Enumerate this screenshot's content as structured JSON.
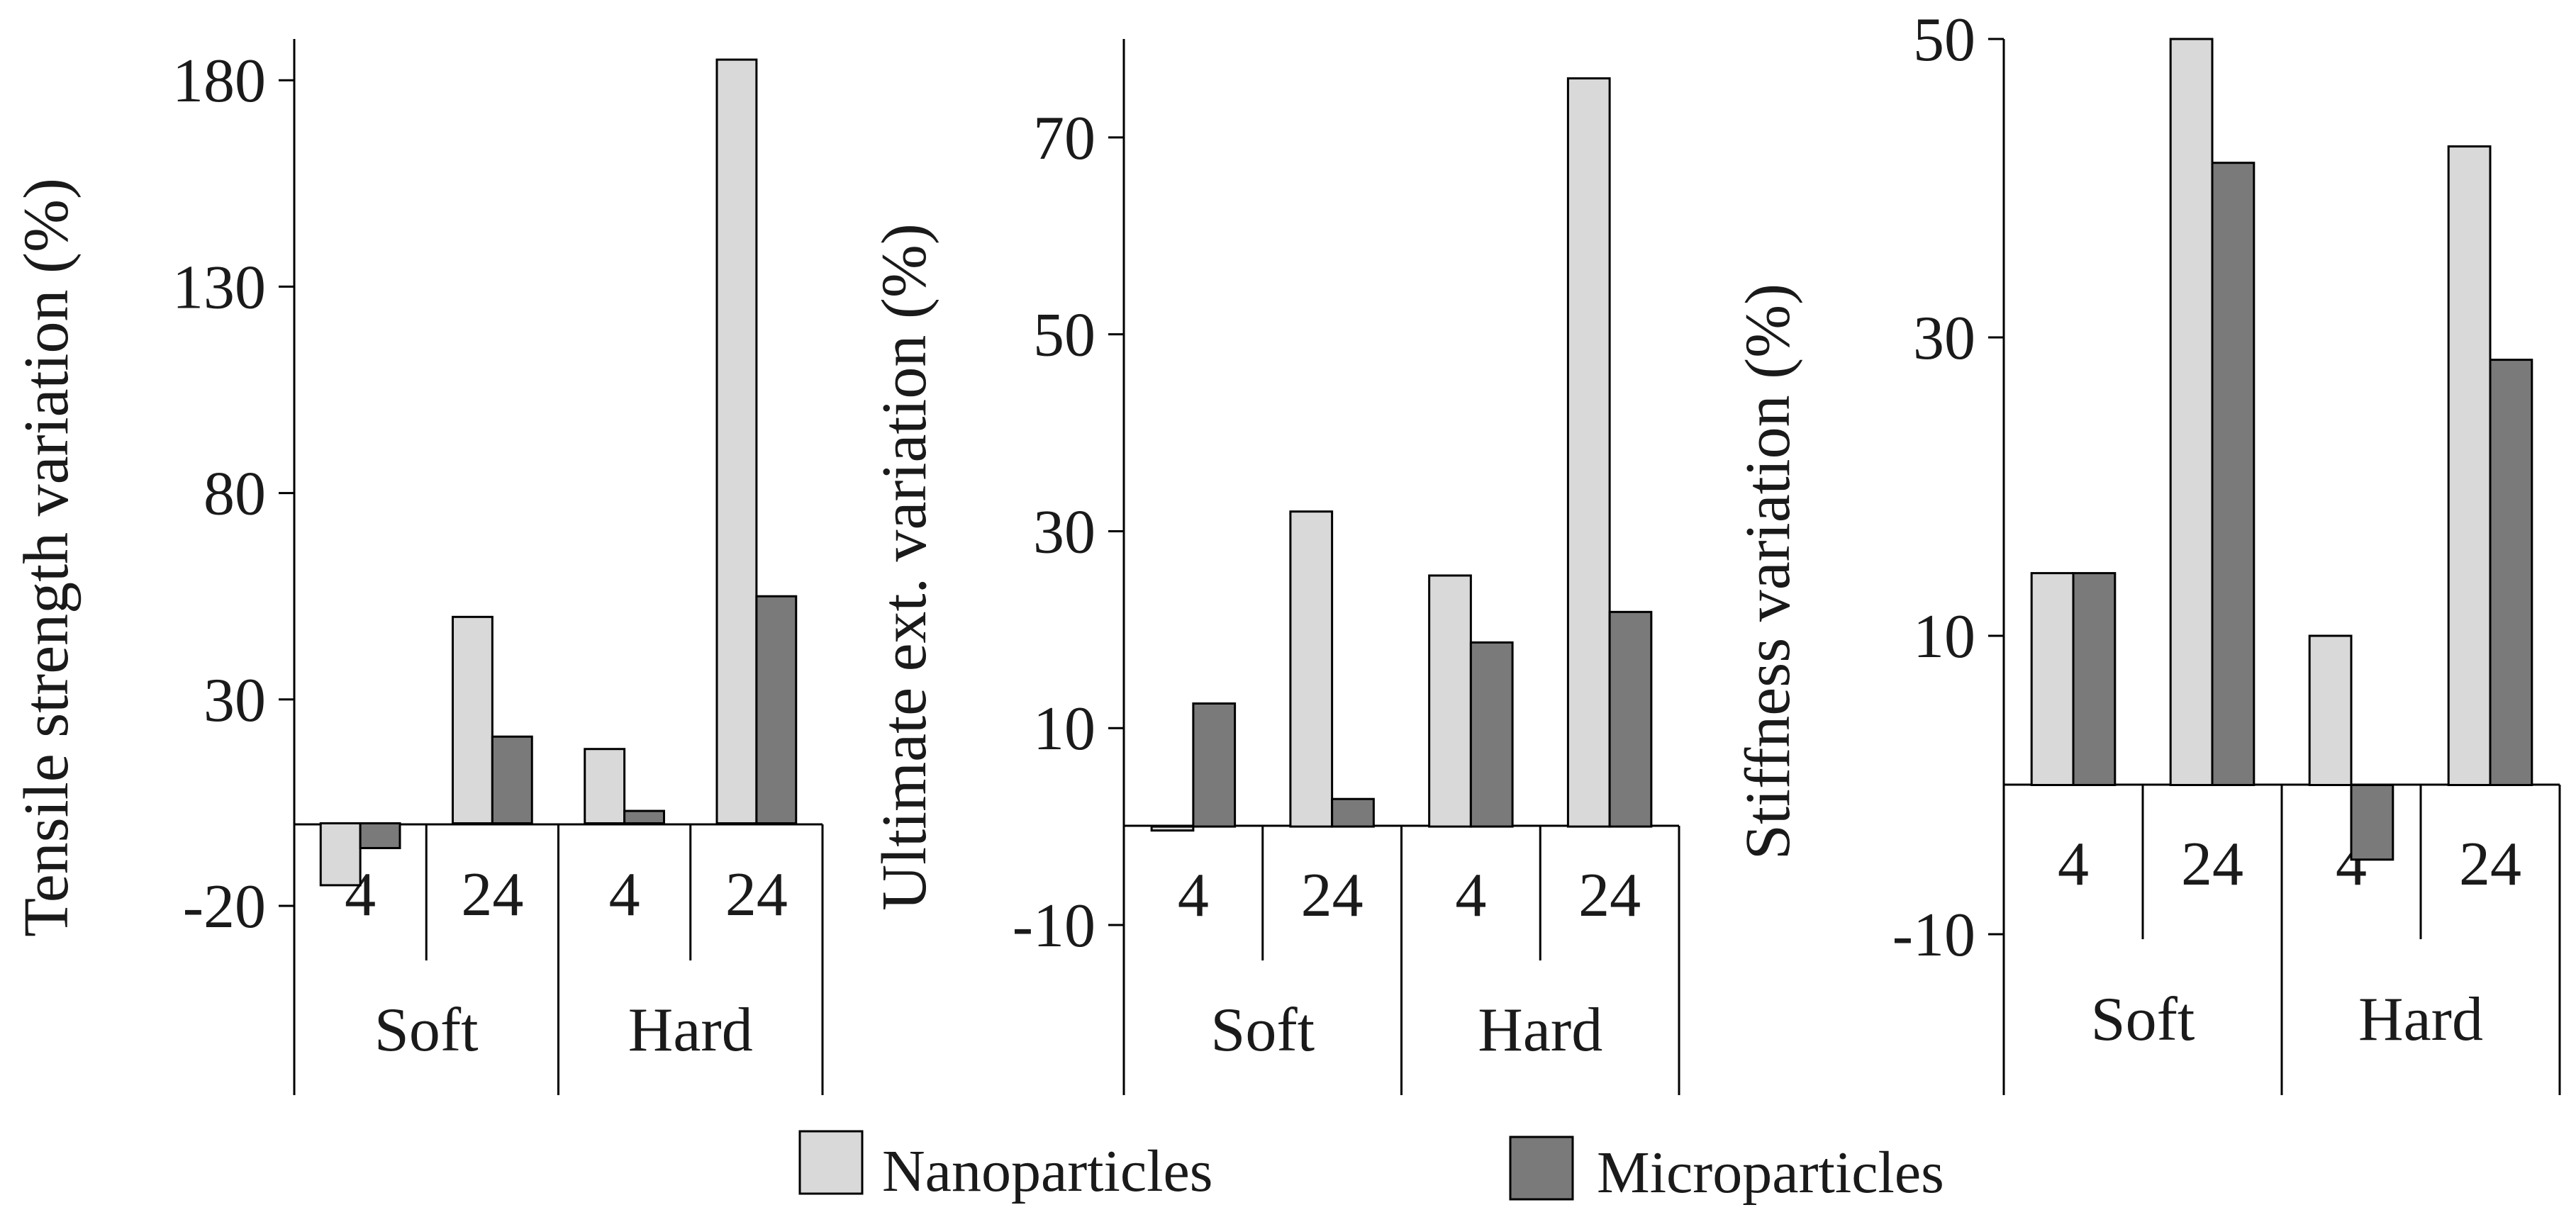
{
  "colors": {
    "nano": "#d9d9d9",
    "micro": "#7a7a7a",
    "stroke": "#000000"
  },
  "legend": [
    {
      "name": "Nanoparticles",
      "color": "#d9d9d9"
    },
    {
      "name": "Microparticles",
      "color": "#7a7a7a"
    }
  ],
  "chart_data": [
    {
      "type": "bar",
      "ylabel": "Tensile strength variation (%)",
      "yticks": [
        -20,
        30,
        80,
        130,
        180
      ],
      "ylim": [
        -20,
        190
      ],
      "groups": [
        "Soft",
        "Hard"
      ],
      "categories": [
        "4",
        "24",
        "4",
        "24"
      ],
      "series": [
        {
          "name": "Nanoparticles",
          "values": [
            -15,
            50,
            18,
            185
          ]
        },
        {
          "name": "Microparticles",
          "values": [
            -6,
            21,
            3,
            55
          ]
        }
      ]
    },
    {
      "type": "bar",
      "ylabel": "Ultimate ext. variation (%)",
      "yticks": [
        -10,
        10,
        30,
        50,
        70
      ],
      "ylim": [
        -10,
        80
      ],
      "groups": [
        "Soft",
        "Hard"
      ],
      "categories": [
        "4",
        "24",
        "4",
        "24"
      ],
      "series": [
        {
          "name": "Nanoparticles",
          "values": [
            -0.4,
            32,
            25.5,
            76
          ]
        },
        {
          "name": "Microparticles",
          "values": [
            12.5,
            2.8,
            18.7,
            21.8
          ]
        }
      ]
    },
    {
      "type": "bar",
      "ylabel": "Stiffness variation (%)",
      "yticks": [
        -10,
        10,
        30,
        50
      ],
      "ylim": [
        -10,
        50
      ],
      "groups": [
        "Soft",
        "Hard"
      ],
      "categories": [
        "4",
        "24",
        "4",
        "24"
      ],
      "series": [
        {
          "name": "Nanoparticles",
          "values": [
            14.2,
            50,
            10,
            42.8
          ]
        },
        {
          "name": "Microparticles",
          "values": [
            14.2,
            41.7,
            -5,
            28.5
          ]
        }
      ]
    }
  ]
}
